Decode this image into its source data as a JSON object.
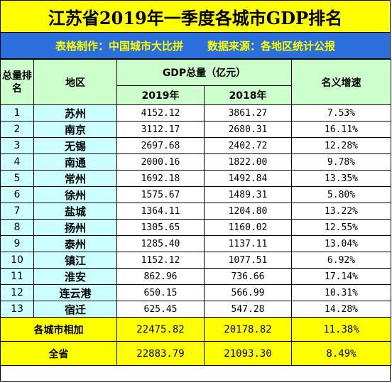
{
  "title": "江苏省2019年一季度各城市GDP排名",
  "subtitle": {
    "maker": "表格制作：中国城市大比拼",
    "source": "数据来源：各地区统计公报"
  },
  "headers": {
    "rank": "总量排名",
    "region": "地区",
    "gdp_group": "GDP总量（亿元）",
    "year_2019": "2019年",
    "year_2018": "2018年",
    "growth": "名义增速"
  },
  "rows": [
    {
      "rank": "1",
      "city": "苏州",
      "v2019": "4152.12",
      "v2018": "3861.27",
      "growth": "7.53%"
    },
    {
      "rank": "2",
      "city": "南京",
      "v2019": "3112.17",
      "v2018": "2680.31",
      "growth": "16.11%"
    },
    {
      "rank": "3",
      "city": "无锡",
      "v2019": "2697.68",
      "v2018": "2402.72",
      "growth": "12.28%"
    },
    {
      "rank": "4",
      "city": "南通",
      "v2019": "2000.16",
      "v2018": "1822.00",
      "growth": "9.78%"
    },
    {
      "rank": "5",
      "city": "常州",
      "v2019": "1692.18",
      "v2018": "1492.84",
      "growth": "13.35%"
    },
    {
      "rank": "6",
      "city": "徐州",
      "v2019": "1575.67",
      "v2018": "1489.31",
      "growth": "5.80%"
    },
    {
      "rank": "7",
      "city": "盐城",
      "v2019": "1364.11",
      "v2018": "1204.80",
      "growth": "13.22%"
    },
    {
      "rank": "8",
      "city": "扬州",
      "v2019": "1305.65",
      "v2018": "1160.02",
      "growth": "12.55%"
    },
    {
      "rank": "9",
      "city": "泰州",
      "v2019": "1285.40",
      "v2018": "1137.11",
      "growth": "13.04%"
    },
    {
      "rank": "10",
      "city": "镇江",
      "v2019": "1152.12",
      "v2018": "1077.51",
      "growth": "6.92%"
    },
    {
      "rank": "11",
      "city": "淮安",
      "v2019": "862.96",
      "v2018": "736.66",
      "growth": "17.14%"
    },
    {
      "rank": "12",
      "city": "连云港",
      "v2019": "650.15",
      "v2018": "566.99",
      "growth": "10.31%"
    },
    {
      "rank": "13",
      "city": "宿迁",
      "v2019": "625.45",
      "v2018": "547.28",
      "growth": "14.28%"
    }
  ],
  "totals": [
    {
      "label": "各城市相加",
      "v2019": "22475.82",
      "v2018": "20178.82",
      "growth": "11.38%"
    },
    {
      "label": "全省",
      "v2019": "22883.79",
      "v2018": "21093.30",
      "growth": "8.49%"
    }
  ]
}
